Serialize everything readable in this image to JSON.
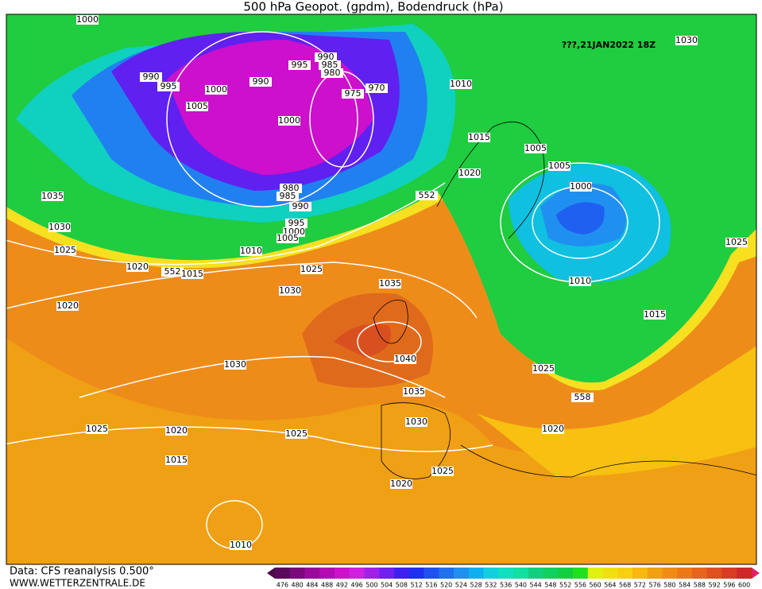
{
  "header": {
    "title": "500 hPa Geopot. (gpdm), Bodendruck (hPa)",
    "date": "???,21JAN2022 18Z"
  },
  "isobar_labels": [
    "1000",
    "990",
    "995",
    "990",
    "995",
    "990",
    "985",
    "980",
    "975",
    "970",
    "1000",
    "1005",
    "1000",
    "980",
    "985",
    "990",
    "995",
    "1000",
    "1005",
    "1010",
    "1035",
    "1030",
    "1025",
    "1020",
    "552",
    "1015",
    "1025",
    "1030",
    "1035",
    "1020",
    "1030",
    "1040",
    "1035",
    "1030",
    "1025",
    "1020",
    "1025",
    "1015",
    "1025",
    "1020",
    "1010",
    "552",
    "1010",
    "1015",
    "1020",
    "1005",
    "1005",
    "1000",
    "1010",
    "1015",
    "1025",
    "558",
    "1020",
    "1025",
    "1030"
  ],
  "footer": {
    "source": "Data: CFS reanalysis 0.500°",
    "site": "WWW.WETTERZENTRALE.DE"
  },
  "colorbar": {
    "labels": [
      476,
      480,
      484,
      488,
      492,
      496,
      500,
      504,
      508,
      512,
      516,
      520,
      524,
      528,
      532,
      536,
      540,
      544,
      548,
      552,
      556,
      560,
      564,
      568,
      572,
      576,
      580,
      584,
      588,
      592,
      596,
      600
    ],
    "colors": [
      "#5a0a5a",
      "#7a0a7a",
      "#9a0a9a",
      "#b40ab4",
      "#cc10cc",
      "#d020e0",
      "#a020e8",
      "#7020f0",
      "#4020f0",
      "#2030f0",
      "#2050f0",
      "#2070f0",
      "#2090f0",
      "#10b0f0",
      "#10d0e0",
      "#10e0c0",
      "#10e0a0",
      "#10d080",
      "#10d060",
      "#10d040",
      "#20e020",
      "#e0f010",
      "#f0e010",
      "#f8d010",
      "#f8b810",
      "#f0a010",
      "#f08c14",
      "#ec7818",
      "#e8641c",
      "#e05020",
      "#d83c24",
      "#d02828"
    ]
  }
}
